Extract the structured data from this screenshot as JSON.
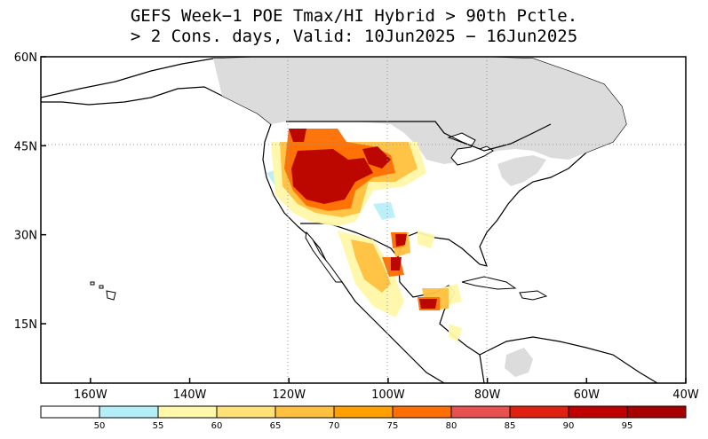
{
  "title": {
    "line1": "GEFS Week−1 POE Tmax/HI Hybrid > 90th Pctle.",
    "line2": "> 2 Cons. days, Valid: 10Jun2025 − 16Jun2025"
  },
  "map": {
    "lat_labels": [
      "60N",
      "45N",
      "30N",
      "15N"
    ],
    "lat_values": [
      60,
      45,
      30,
      15
    ],
    "lon_labels": [
      "160W",
      "140W",
      "120W",
      "100W",
      "80W",
      "60W",
      "40W"
    ],
    "lon_values": [
      -160,
      -140,
      -120,
      -100,
      -80,
      -60,
      -40
    ],
    "extent": {
      "lon_min": -170,
      "lon_max": -40,
      "lat_min": 5,
      "lat_max": 60
    },
    "no_data_color": "#dcdcdc",
    "ocean_color": "#ffffff",
    "coast_color": "#000000"
  },
  "colorbar": {
    "colors": [
      "#ffffff",
      "#b4eef8",
      "#fff8a8",
      "#ffe178",
      "#ffc040",
      "#ffa000",
      "#ff6e00",
      "#e95050",
      "#e02010",
      "#c00000",
      "#a80000"
    ],
    "labels": [
      "50",
      "55",
      "60",
      "65",
      "70",
      "75",
      "80",
      "85",
      "90",
      "95"
    ]
  }
}
